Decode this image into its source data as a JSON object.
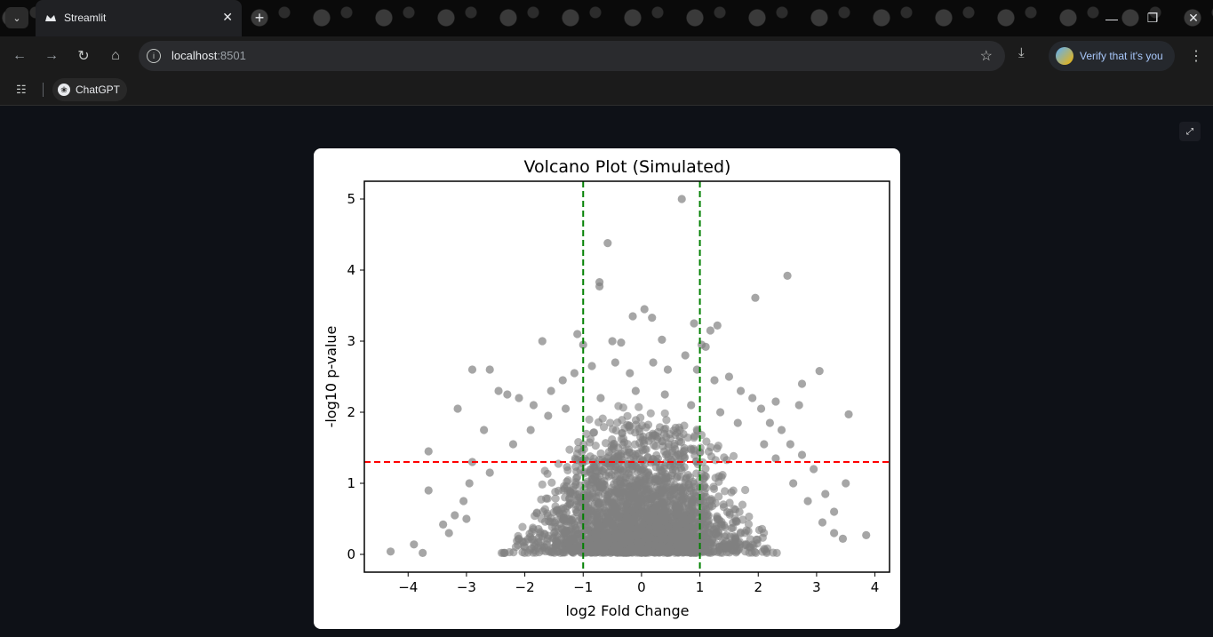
{
  "browser": {
    "tab_title": "Streamlit",
    "url_host": "localhost",
    "url_port": ":8501",
    "verify_label": "Verify that it's you",
    "bookmark_label": "ChatGPT",
    "icons": {
      "tab_search": "chevron-down-icon",
      "favicon": "streamlit-crown-icon",
      "close": "close-icon",
      "new_tab": "plus-icon",
      "back": "arrow-left-icon",
      "forward": "arrow-right-icon",
      "reload": "reload-icon",
      "home": "home-icon",
      "site_info": "info-icon",
      "bookmark_star": "star-icon",
      "download": "download-icon",
      "menu": "kebab-icon",
      "apps": "apps-grid-icon",
      "minimize": "minimize-icon",
      "restore": "restore-icon",
      "window_close": "window-close-icon",
      "fullscreen": "fullscreen-icon"
    }
  },
  "colors": {
    "page_bg": "#0e1117",
    "points": "#808080",
    "threshold_vertical": "#008000",
    "threshold_horizontal": "#ff0000"
  },
  "chart_data": {
    "type": "scatter",
    "title": "Volcano Plot (Simulated)",
    "xlabel": "log2 Fold Change",
    "ylabel": "-log10 p-value",
    "xlim": [
      -4.75,
      4.25
    ],
    "ylim": [
      -0.25,
      5.25
    ],
    "xticks": [
      -4,
      -3,
      -2,
      -1,
      0,
      1,
      2,
      3,
      4
    ],
    "xtick_labels": [
      "−4",
      "−3",
      "−2",
      "−1",
      "0",
      "1",
      "2",
      "3",
      "4"
    ],
    "yticks": [
      0,
      1,
      2,
      3,
      4,
      5
    ],
    "ytick_labels": [
      "0",
      "1",
      "2",
      "3",
      "4",
      "5"
    ],
    "grid": false,
    "vlines": [
      -1,
      1
    ],
    "hline": 1.3,
    "series": [
      {
        "values": [
          [
            0.69,
            5.0
          ],
          [
            -0.58,
            4.38
          ],
          [
            -0.72,
            3.83
          ],
          [
            -0.72,
            3.77
          ],
          [
            2.5,
            3.92
          ],
          [
            1.95,
            3.61
          ],
          [
            0.05,
            3.45
          ],
          [
            -0.15,
            3.35
          ],
          [
            0.18,
            3.33
          ],
          [
            0.9,
            3.25
          ],
          [
            1.3,
            3.22
          ],
          [
            1.18,
            3.15
          ],
          [
            -1.1,
            3.1
          ],
          [
            -1.7,
            3.0
          ],
          [
            -1.0,
            2.95
          ],
          [
            -0.5,
            3.0
          ],
          [
            -0.35,
            2.98
          ],
          [
            0.35,
            3.02
          ],
          [
            1.03,
            2.95
          ],
          [
            1.1,
            2.92
          ],
          [
            -2.9,
            2.6
          ],
          [
            -2.6,
            2.6
          ],
          [
            3.05,
            2.58
          ],
          [
            -3.15,
            2.05
          ],
          [
            3.55,
            1.97
          ],
          [
            2.7,
            2.1
          ],
          [
            2.3,
            2.15
          ],
          [
            2.75,
            2.4
          ],
          [
            -3.65,
            1.45
          ],
          [
            -3.65,
            0.9
          ],
          [
            3.5,
            1.0
          ],
          [
            3.85,
            0.27
          ],
          [
            -4.3,
            0.04
          ],
          [
            -3.75,
            0.02
          ],
          [
            -3.9,
            0.14
          ],
          [
            -3.4,
            0.42
          ],
          [
            -3.2,
            0.55
          ],
          [
            -2.45,
            2.3
          ],
          [
            -2.3,
            2.25
          ],
          [
            -2.1,
            2.2
          ],
          [
            -1.85,
            2.1
          ],
          [
            -1.55,
            2.3
          ],
          [
            -1.35,
            2.45
          ],
          [
            -1.15,
            2.55
          ],
          [
            -0.85,
            2.65
          ],
          [
            -0.45,
            2.7
          ],
          [
            -0.2,
            2.55
          ],
          [
            0.2,
            2.7
          ],
          [
            0.45,
            2.6
          ],
          [
            0.75,
            2.8
          ],
          [
            0.95,
            2.6
          ],
          [
            1.25,
            2.45
          ],
          [
            1.5,
            2.5
          ],
          [
            1.7,
            2.3
          ],
          [
            1.9,
            2.2
          ],
          [
            2.05,
            2.05
          ],
          [
            2.2,
            1.85
          ],
          [
            2.4,
            1.75
          ],
          [
            2.55,
            1.55
          ],
          [
            2.75,
            1.4
          ],
          [
            2.95,
            1.2
          ],
          [
            3.15,
            0.85
          ],
          [
            3.3,
            0.6
          ],
          [
            -2.7,
            1.75
          ],
          [
            -2.9,
            1.3
          ],
          [
            -2.95,
            1.0
          ],
          [
            -3.05,
            0.75
          ],
          [
            -2.6,
            1.15
          ],
          [
            -2.2,
            1.55
          ],
          [
            -1.9,
            1.75
          ],
          [
            -1.6,
            1.95
          ],
          [
            -1.3,
            2.05
          ],
          [
            -0.7,
            2.2
          ],
          [
            -0.1,
            2.3
          ],
          [
            0.4,
            2.25
          ],
          [
            0.85,
            2.1
          ],
          [
            1.35,
            2.0
          ],
          [
            1.65,
            1.85
          ],
          [
            2.1,
            1.55
          ],
          [
            2.3,
            1.35
          ],
          [
            2.6,
            1.0
          ],
          [
            2.85,
            0.75
          ],
          [
            3.1,
            0.45
          ],
          [
            -3.3,
            0.3
          ],
          [
            -3.0,
            0.5
          ],
          [
            3.3,
            0.3
          ],
          [
            3.45,
            0.22
          ]
        ]
      }
    ]
  }
}
